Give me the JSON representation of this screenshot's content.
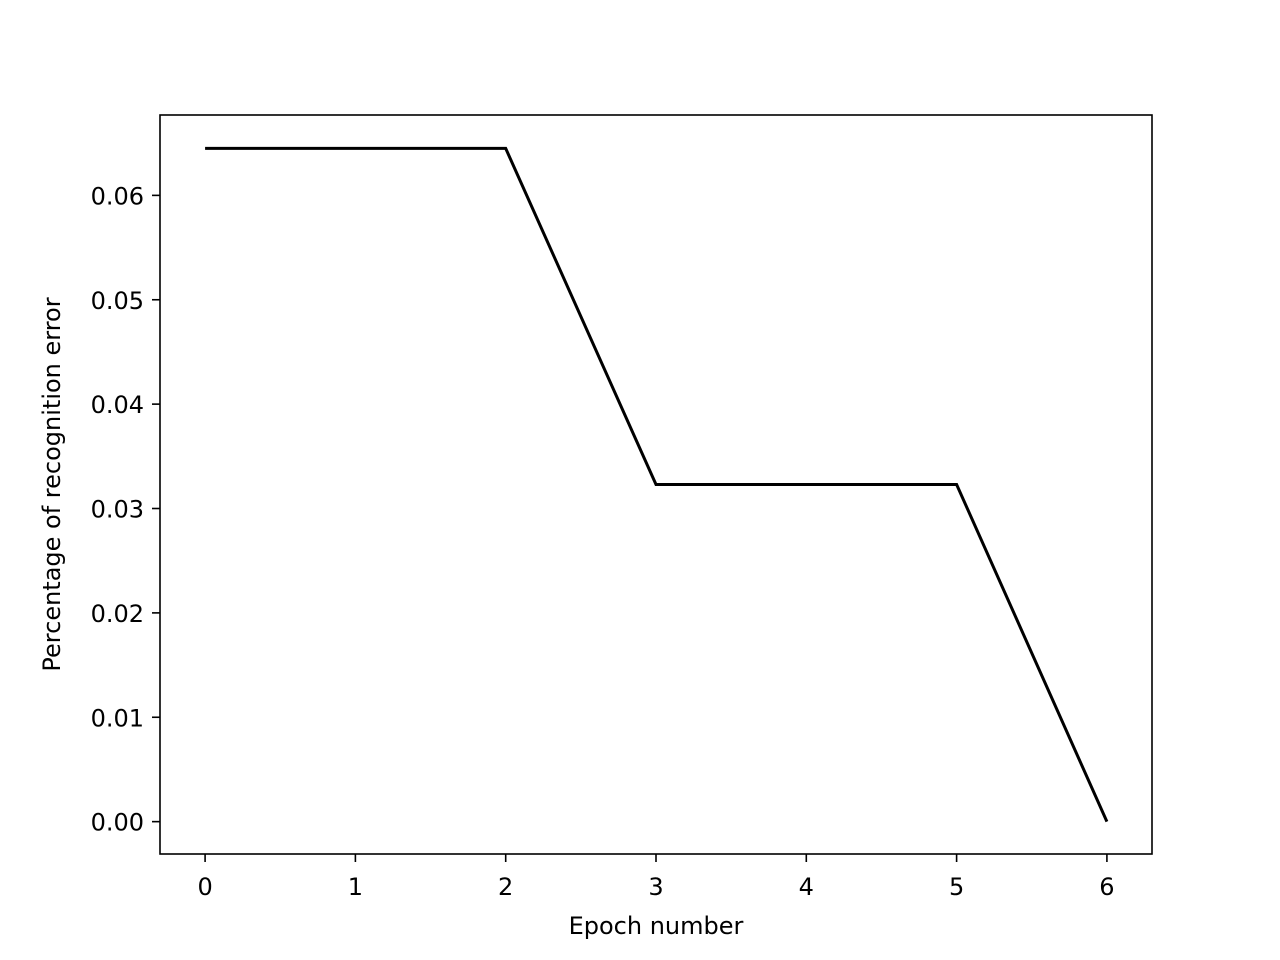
{
  "chart_data": {
    "type": "line",
    "title": "",
    "xlabel": "Epoch number",
    "ylabel": "Percentage of recognition error",
    "xlim": [
      -0.3,
      6.3
    ],
    "ylim": [
      -0.0031,
      0.0677
    ],
    "x_ticks": [
      0,
      1,
      2,
      3,
      4,
      5,
      6
    ],
    "x_tick_labels": [
      "0",
      "1",
      "2",
      "3",
      "4",
      "5",
      "6"
    ],
    "y_ticks": [
      0.0,
      0.01,
      0.02,
      0.03,
      0.04,
      0.05,
      0.06
    ],
    "y_tick_labels": [
      "0.00",
      "0.01",
      "0.02",
      "0.03",
      "0.04",
      "0.05",
      "0.06"
    ],
    "grid": false,
    "legend": "none",
    "series": [
      {
        "color": "#000000",
        "x": [
          0,
          1,
          2,
          3,
          4,
          5,
          6
        ],
        "y": [
          0.0645,
          0.0645,
          0.0645,
          0.0323,
          0.0323,
          0.0323,
          0.0
        ]
      }
    ]
  }
}
